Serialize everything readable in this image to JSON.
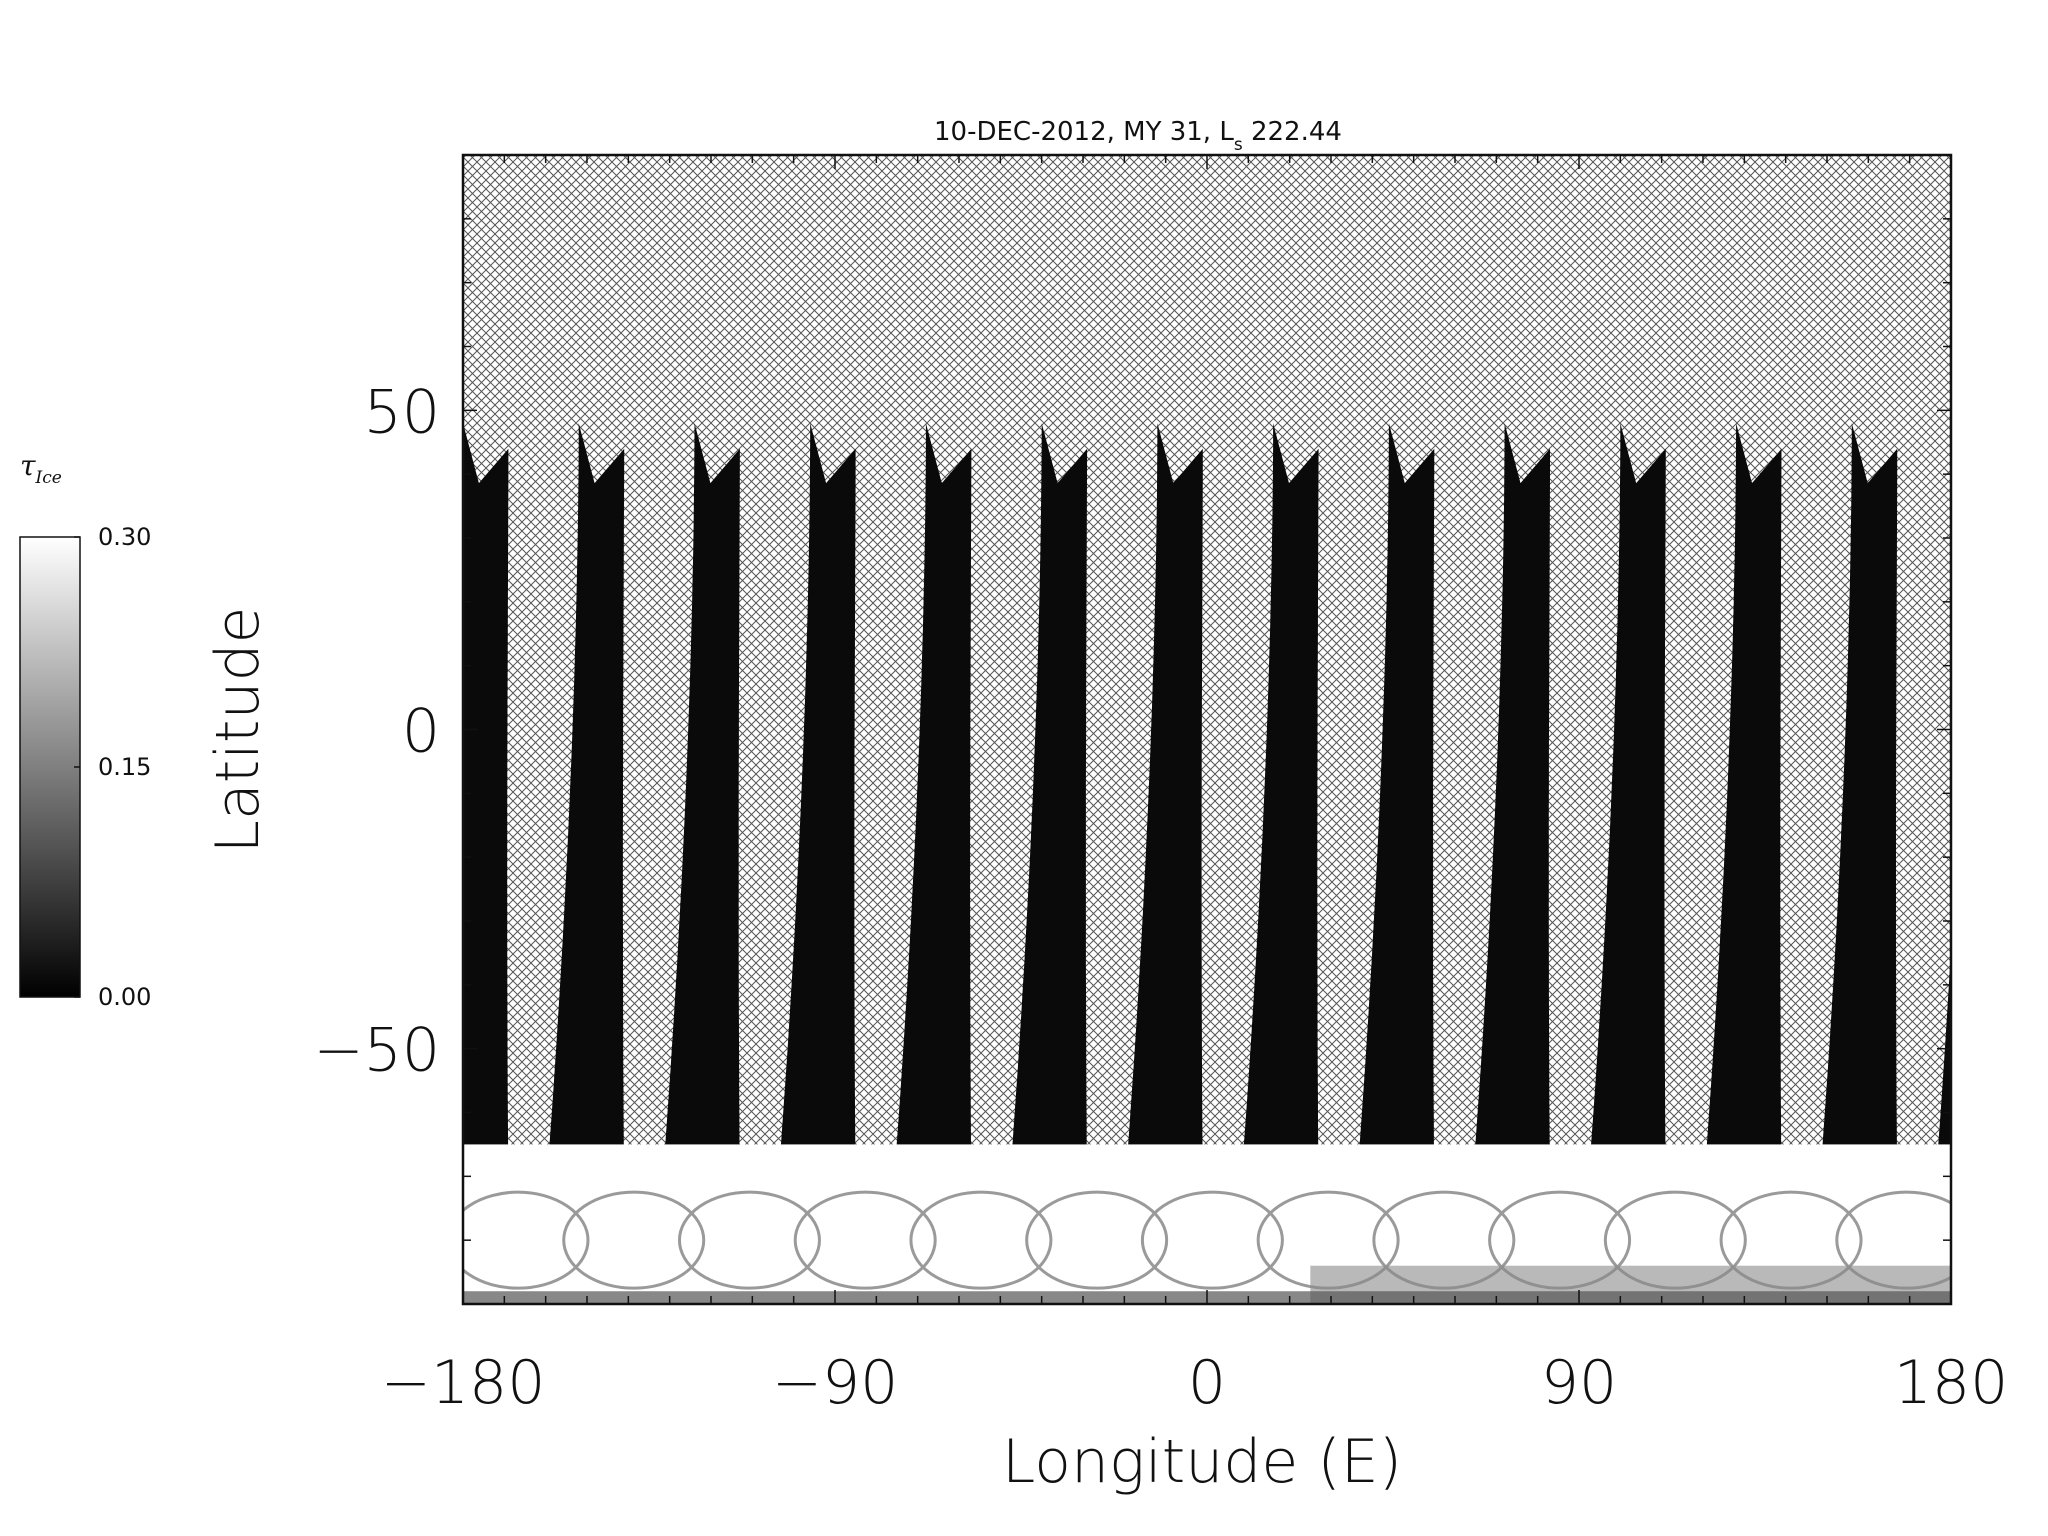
{
  "chart_data": {
    "type": "heatmap",
    "title_main": "10-DEC-2012, MY 31,  L",
    "title_sub": "s",
    "title_value": " 222.44",
    "xlabel": "Longitude (E)",
    "ylabel": "Latitude",
    "xlim": [
      -180,
      180
    ],
    "ylim": [
      -90,
      90
    ],
    "xticks": [
      "-180",
      "-90",
      "0",
      "90",
      "180"
    ],
    "yticks": [
      "-50",
      "0",
      "50"
    ],
    "no_data_fill": "crosshatch",
    "colorbar": {
      "symbol": "τ",
      "symbol_sub": "Ice",
      "ticks": [
        "0.00",
        "0.15",
        "0.30"
      ],
      "range": [
        0.0,
        0.3
      ],
      "colormap": "grayscale"
    },
    "swaths": {
      "count": 14,
      "first_longitude": -180,
      "spacing_deg": 28,
      "top_latitude": 48,
      "bottom_latitude": -73,
      "width_deg_equator": 11,
      "tau_ice_typical": 0.0
    },
    "south_polar_hood": {
      "lat_from": -65,
      "lat_to": -90,
      "tau_ice": 0.3
    }
  }
}
